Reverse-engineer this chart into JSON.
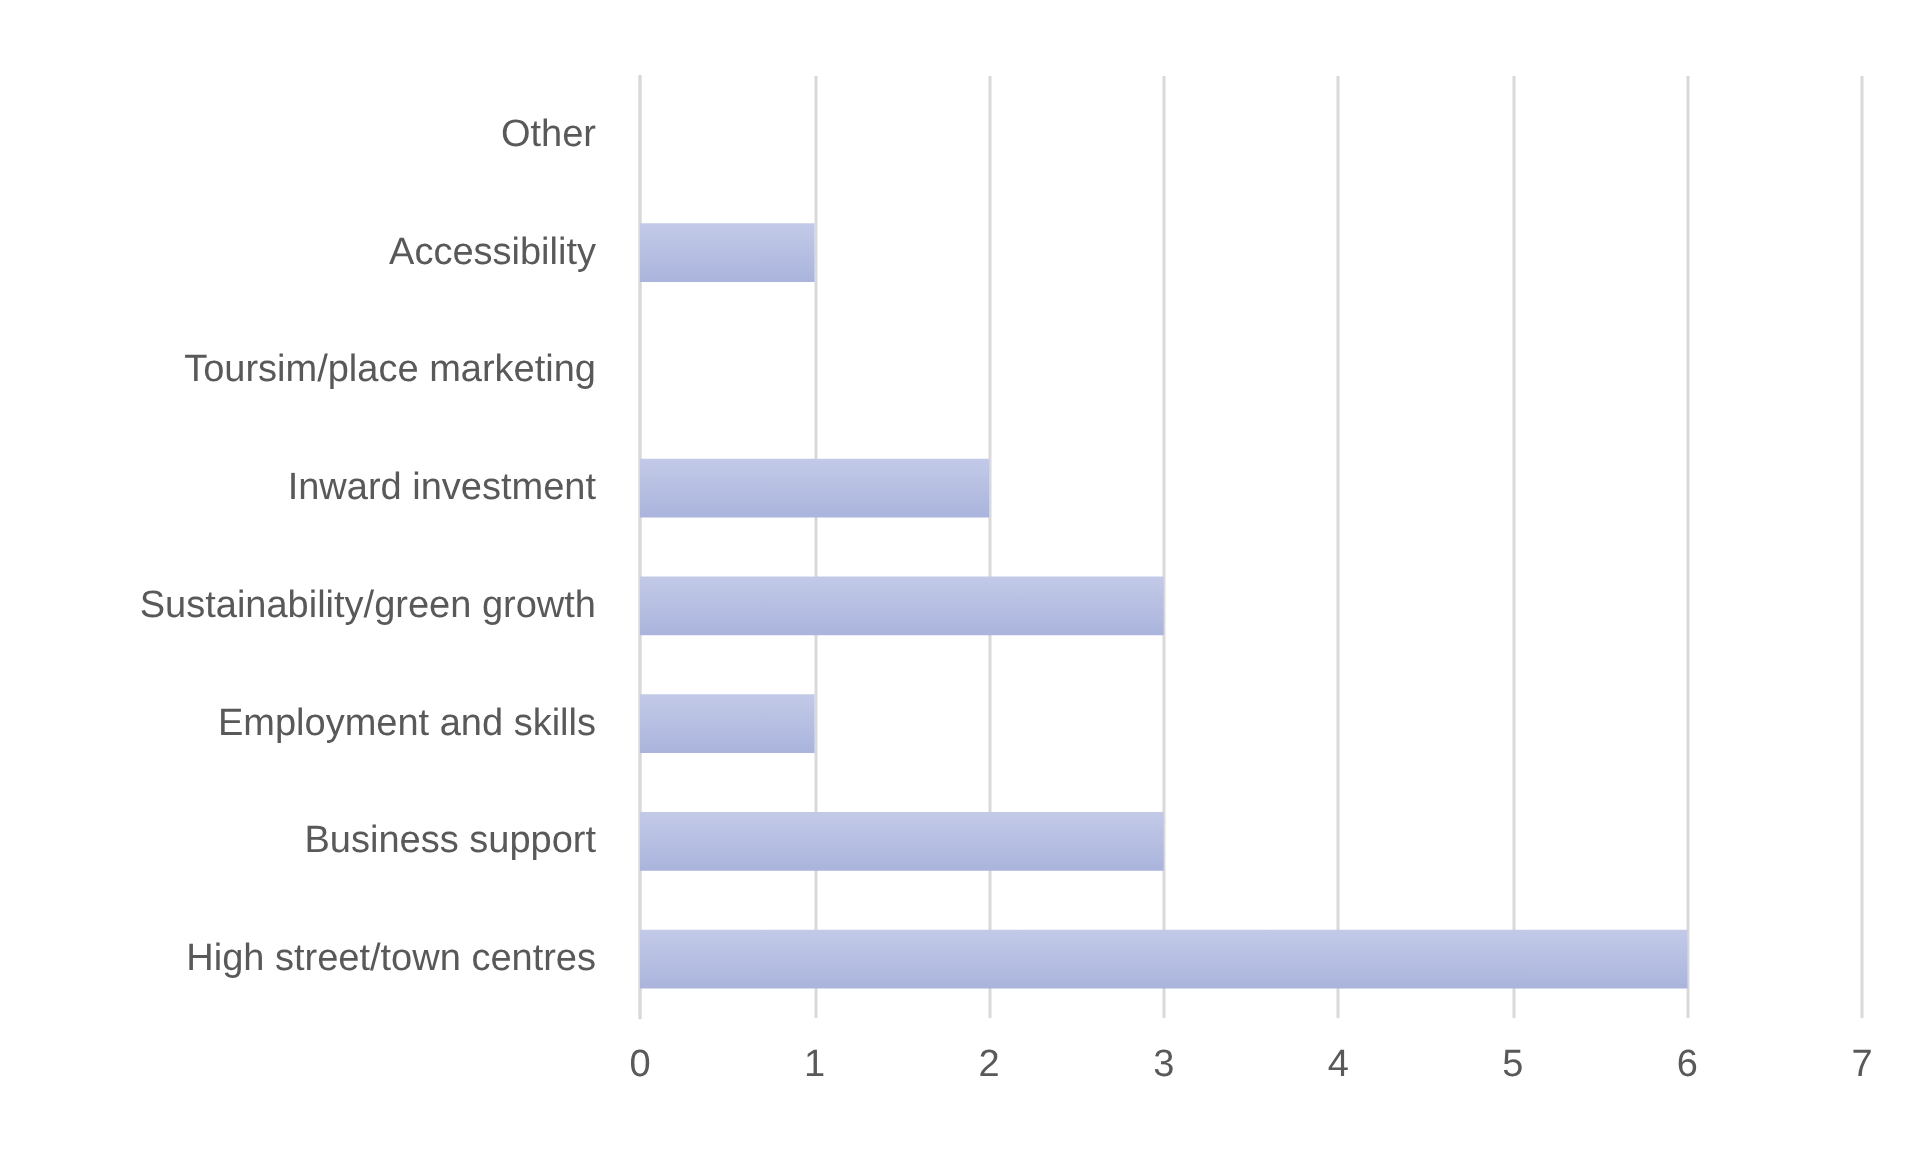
{
  "chart_data": {
    "type": "bar",
    "orientation": "horizontal",
    "categories": [
      "Other",
      "Accessibility",
      "Toursim/place marketing",
      "Inward investment",
      "Sustainability/green growth",
      "Employment and skills",
      "Business support",
      "High street/town centres"
    ],
    "values": [
      0,
      1,
      0,
      2,
      3,
      1,
      3,
      6
    ],
    "color": "#aab4dc",
    "xlim": [
      0,
      7
    ],
    "xticks": [
      0,
      1,
      2,
      3,
      4,
      5,
      6,
      7
    ],
    "grid": "x"
  }
}
